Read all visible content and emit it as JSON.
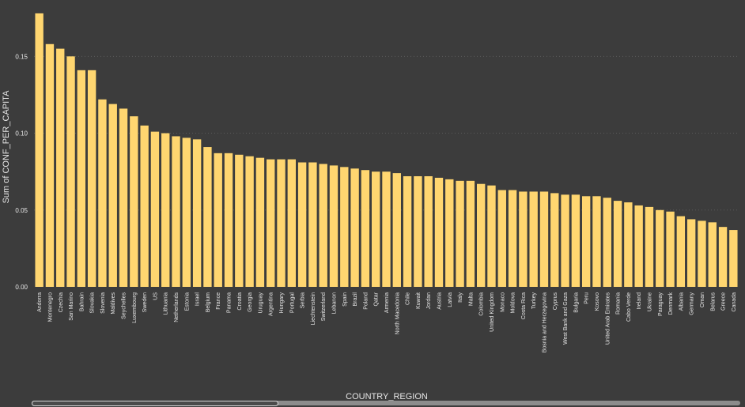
{
  "colors": {
    "background": "#3c3c3c",
    "bar": "#ffd670",
    "text": "#e6e6e6",
    "gridline": "#5a5a5a"
  },
  "scrollbar": {
    "visible": true,
    "position": "bottom"
  },
  "chart_data": {
    "type": "bar",
    "title": "",
    "xlabel": "COUNTRY_REGION",
    "ylabel": "Sum of CONF_PER_CAPITA",
    "ylim": [
      0,
      0.18
    ],
    "yticks": [
      "0.00",
      "0.05",
      "0.10",
      "0.15"
    ],
    "ytick_values": [
      0,
      0.05,
      0.1,
      0.15
    ],
    "grid": true,
    "legend": "none",
    "categories": [
      "Andorra",
      "Montenegro",
      "Czechia",
      "San Marino",
      "Bahrain",
      "Slovakia",
      "Slovenia",
      "Maldives",
      "Seychelles",
      "Luxembourg",
      "Sweden",
      "US",
      "Lithuania",
      "Netherlands",
      "Estonia",
      "Israel",
      "Belgium",
      "France",
      "Panama",
      "Croatia",
      "Georgia",
      "Uruguay",
      "Argentina",
      "Hungary",
      "Portugal",
      "Serbia",
      "Liechtenstein",
      "Switzerland",
      "Lebanon",
      "Spain",
      "Brazil",
      "Poland",
      "Qatar",
      "Armenia",
      "North Macedonia",
      "Chile",
      "Kuwait",
      "Jordan",
      "Austria",
      "Latvia",
      "Italy",
      "Malta",
      "Colombia",
      "United Kingdom",
      "Monaco",
      "Moldova",
      "Costa Rica",
      "Turkey",
      "Bosnia and Herzegovina",
      "Cyprus",
      "West Bank and Gaza",
      "Bulgaria",
      "Peru",
      "Kosovo",
      "United Arab Emirates",
      "Romania",
      "Cabo Verde",
      "Ireland",
      "Ukraine",
      "Paraguay",
      "Denmark",
      "Albania",
      "Germany",
      "Oman",
      "Belarus",
      "Greece",
      "Canada"
    ],
    "values": [
      0.178,
      0.158,
      0.155,
      0.15,
      0.141,
      0.141,
      0.122,
      0.119,
      0.116,
      0.111,
      0.105,
      0.101,
      0.1,
      0.098,
      0.097,
      0.096,
      0.091,
      0.087,
      0.087,
      0.086,
      0.085,
      0.084,
      0.083,
      0.083,
      0.083,
      0.081,
      0.081,
      0.08,
      0.079,
      0.078,
      0.077,
      0.076,
      0.075,
      0.075,
      0.074,
      0.072,
      0.072,
      0.072,
      0.071,
      0.07,
      0.069,
      0.069,
      0.067,
      0.066,
      0.063,
      0.063,
      0.062,
      0.062,
      0.062,
      0.061,
      0.06,
      0.06,
      0.059,
      0.059,
      0.058,
      0.056,
      0.055,
      0.053,
      0.052,
      0.05,
      0.049,
      0.046,
      0.044,
      0.043,
      0.042,
      0.039,
      0.037
    ]
  }
}
